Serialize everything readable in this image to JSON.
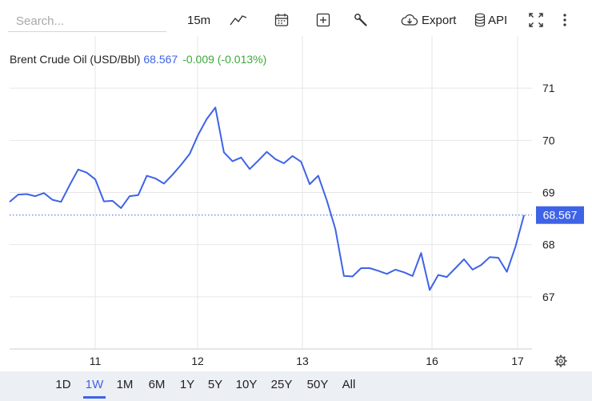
{
  "toolbar": {
    "search_placeholder": "Search...",
    "interval": "15m",
    "export_label": "Export",
    "api_label": "API",
    "icons": [
      "line-chart-icon",
      "calendar-icon",
      "add-indicator-icon",
      "wrench-icon",
      "cloud-download-icon",
      "database-icon",
      "fullscreen-icon",
      "more-icon"
    ]
  },
  "legend": {
    "name": "Brent Crude Oil (USD/Bbl)",
    "price": "68.567",
    "change": "-0.009 (-0.013%)"
  },
  "ranges": [
    "1D",
    "1W",
    "1M",
    "6M",
    "1Y",
    "5Y",
    "10Y",
    "25Y",
    "50Y",
    "All"
  ],
  "active_range": "1W",
  "chart_data": {
    "type": "line",
    "title": "Brent Crude Oil (USD/Bbl)",
    "x_ticks": [
      "11",
      "12",
      "13",
      "16",
      "17"
    ],
    "y_ticks": [
      67,
      68,
      69,
      70,
      71
    ],
    "ylim": [
      66.0,
      72.0
    ],
    "last_value": 68.567,
    "last_value_label": "68.567",
    "grid": true,
    "colors": {
      "line": "#3f63e6",
      "up": "#3ea83b"
    },
    "series": [
      {
        "x": [
          0,
          0.2,
          0.4,
          0.6,
          0.8,
          1.0,
          1.2,
          1.4,
          1.6,
          1.8,
          2.0,
          2.2,
          2.4,
          2.6,
          2.8,
          3.0,
          3.2,
          3.4,
          3.6,
          3.8,
          4.0,
          4.2,
          4.4,
          4.6,
          4.8,
          5.0,
          5.2,
          5.4,
          5.6,
          5.8,
          6.0,
          6.2,
          6.4,
          6.6,
          6.8,
          7.0,
          7.2,
          7.4,
          7.6,
          7.8,
          8.0,
          8.2,
          8.4,
          8.6,
          8.8,
          9.0,
          9.2,
          9.4,
          9.6,
          9.8,
          10.0,
          10.2,
          10.4,
          10.6,
          10.8,
          11.0,
          11.2,
          11.4,
          11.6,
          11.8,
          12.0
        ],
        "y": [
          68.82,
          68.96,
          68.97,
          68.93,
          68.99,
          68.86,
          68.82,
          69.14,
          69.44,
          69.38,
          69.25,
          68.83,
          68.84,
          68.7,
          68.93,
          68.95,
          69.32,
          69.27,
          69.17,
          69.34,
          69.53,
          69.74,
          70.11,
          70.41,
          70.63,
          69.77,
          69.6,
          69.67,
          69.45,
          69.61,
          69.78,
          69.64,
          69.56,
          69.7,
          69.59,
          69.16,
          69.32,
          68.85,
          68.3,
          67.4,
          67.39,
          67.55,
          67.55,
          67.5,
          67.44,
          67.52,
          67.47,
          67.4,
          67.84,
          67.13,
          67.42,
          67.38,
          67.55,
          67.72,
          67.52,
          67.61,
          67.76,
          67.75,
          67.48,
          67.96,
          68.567
        ]
      }
    ]
  }
}
